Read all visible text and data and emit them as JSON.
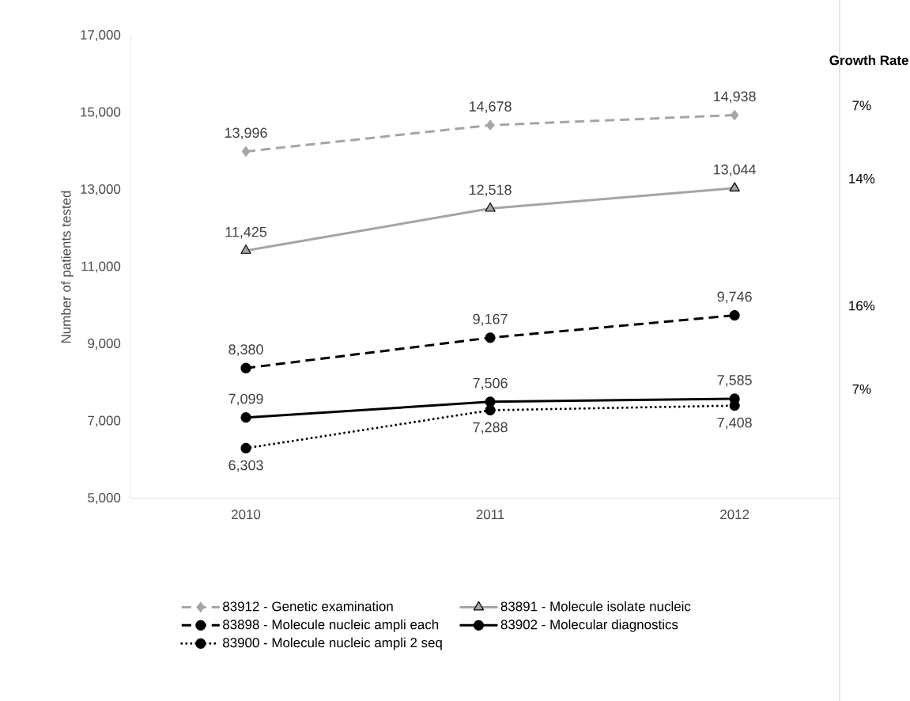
{
  "chart_data": {
    "type": "line",
    "ylabel": "Number of patients tested",
    "categories": [
      "2010",
      "2011",
      "2012"
    ],
    "ylim": [
      5000,
      17000
    ],
    "yticks": [
      {
        "value": 5000,
        "label": "5,000"
      },
      {
        "value": 7000,
        "label": "7,000"
      },
      {
        "value": 9000,
        "label": "9,000"
      },
      {
        "value": 11000,
        "label": "11,000"
      },
      {
        "value": 13000,
        "label": "13,000"
      },
      {
        "value": 15000,
        "label": "15,000"
      },
      {
        "value": 17000,
        "label": "17,000"
      }
    ],
    "series": [
      {
        "name": "83912 - Genetic examination",
        "color": "#a5a5a5",
        "marker": "diamond",
        "line_style": "dashed",
        "values": [
          13996,
          14678,
          14938
        ],
        "value_labels": [
          "13,996",
          "14,678",
          "14,938"
        ]
      },
      {
        "name": "83891 - Molecule isolate nucleic",
        "color": "#a5a5a5",
        "marker": "triangle",
        "line_style": "solid",
        "values": [
          11425,
          12518,
          13044
        ],
        "value_labels": [
          "11,425",
          "12,518",
          "13,044"
        ]
      },
      {
        "name": "83898 - Molecule nucleic ampli each",
        "color": "#000000",
        "marker": "circle",
        "line_style": "dashed",
        "values": [
          8380,
          9167,
          9746
        ],
        "value_labels": [
          "8,380",
          "9,167",
          "9,746"
        ]
      },
      {
        "name": "83902 - Molecular diagnostics",
        "color": "#000000",
        "marker": "circle",
        "line_style": "solid",
        "values": [
          7099,
          7506,
          7585
        ],
        "value_labels": [
          "7,099",
          "7,506",
          "7,585"
        ]
      },
      {
        "name": "83900 - Molecule nucleic ampli 2 seq",
        "color": "#000000",
        "marker": "circle",
        "line_style": "dotted",
        "values": [
          6303,
          7288,
          7408
        ],
        "value_labels": [
          "6,303",
          "7,288",
          "7,408"
        ]
      }
    ],
    "annotations": [
      "Growth Rate",
      "7%",
      "14%",
      "16%",
      "7%"
    ],
    "legend": "bottom",
    "grid": false
  }
}
